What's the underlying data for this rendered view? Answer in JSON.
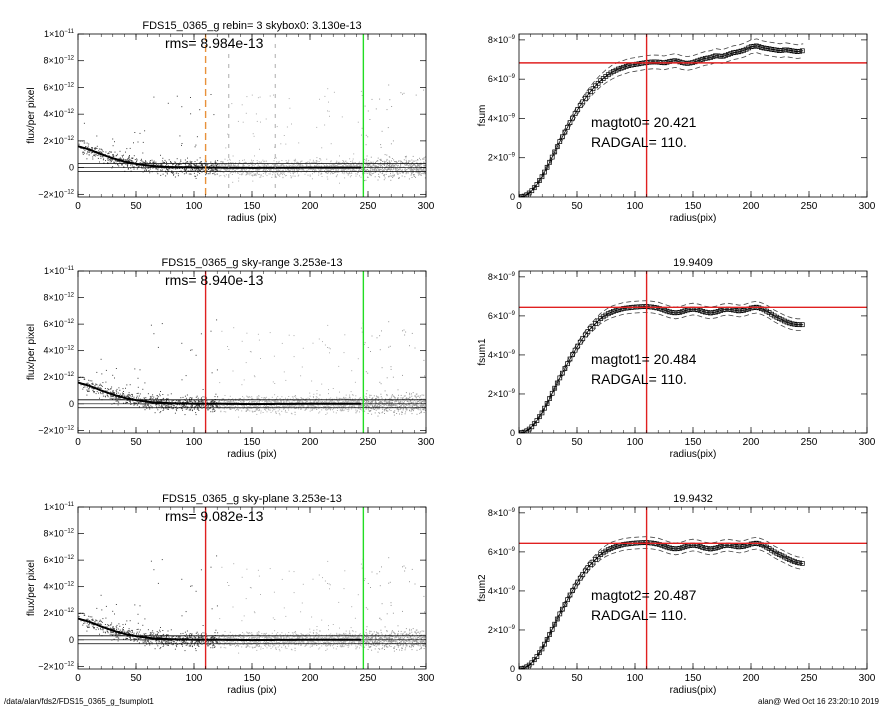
{
  "footer": {
    "path": "/data/alan/fds2/FDS15_0365_g_fsumplot1",
    "stamp": "alan@  Wed Oct 16 23:20:10 2019"
  },
  "chart_data": [
    {
      "type": "scatter",
      "title": "FDS15_0365_g rebin= 3    skybox0:  3.130e-13",
      "annotation": "rms= 8.984e-13",
      "xlabel": "radius (pix)",
      "ylabel": "flux/per pixel",
      "xlim": [
        0,
        300
      ],
      "ylim": [
        -2.2e-12,
        1e-11
      ],
      "xticks": [
        0,
        50,
        100,
        150,
        200,
        250,
        300
      ],
      "yticks": [
        -2e-12,
        0,
        2e-12,
        4e-12,
        6e-12,
        8e-12,
        1e-11
      ],
      "ytick_labels": [
        {
          "m": "−2",
          "e": "−12"
        },
        {
          "m": "0",
          "e": ""
        },
        {
          "m": "2",
          "e": "−12"
        },
        {
          "m": "4",
          "e": "−12"
        },
        {
          "m": "6",
          "e": "−12"
        },
        {
          "m": "8",
          "e": "−12"
        },
        {
          "m": "1",
          "e": "−11"
        }
      ],
      "profile": {
        "x": [
          0,
          10,
          20,
          30,
          40,
          50,
          60,
          70,
          80,
          100,
          120,
          150,
          200,
          245
        ],
        "y": [
          1.6e-12,
          1.35e-12,
          1e-12,
          7e-13,
          4.5e-13,
          2.8e-13,
          1.5e-13,
          8e-14,
          4e-14,
          1e-14,
          0.0,
          -2e-14,
          0.0,
          0.0
        ]
      },
      "hlines": [
        3e-13,
        -3e-13
      ],
      "vlines": [
        {
          "x": 110,
          "color": "#e8913a",
          "style": "dashed"
        },
        {
          "x": 246,
          "color": "#22dd22",
          "style": "solid"
        },
        {
          "x": 130,
          "color": "#999999",
          "style": "dashed-thin"
        },
        {
          "x": 170,
          "color": "#999999",
          "style": "dashed-thin"
        }
      ]
    },
    {
      "type": "line",
      "title": "",
      "annotation": [
        "magtot0=  20.421",
        "RADGAL=     110."
      ],
      "xlabel": "radius(pix)",
      "ylabel": "fsum",
      "xlim": [
        0,
        300
      ],
      "ylim": [
        0,
        8.3e-09
      ],
      "xticks": [
        0,
        50,
        100,
        150,
        200,
        250,
        300
      ],
      "yticks": [
        0,
        2e-09,
        4e-09,
        6e-09,
        8e-09
      ],
      "ytick_labels": [
        {
          "m": "0",
          "e": ""
        },
        {
          "m": "2",
          "e": "−9"
        },
        {
          "m": "4",
          "e": "−9"
        },
        {
          "m": "6",
          "e": "−9"
        },
        {
          "m": "8",
          "e": "−9"
        }
      ],
      "curve": {
        "x": [
          0,
          5,
          10,
          15,
          20,
          25,
          30,
          35,
          40,
          45,
          50,
          55,
          60,
          65,
          70,
          75,
          80,
          85,
          90,
          95,
          100,
          105,
          110,
          115,
          120,
          125,
          130,
          135,
          140,
          145,
          150,
          155,
          160,
          165,
          170,
          175,
          180,
          185,
          190,
          195,
          200,
          205,
          210,
          215,
          220,
          225,
          230,
          235,
          240,
          245
        ],
        "y": [
          0,
          5e-11,
          2.5e-10,
          6e-10,
          1.05e-09,
          1.6e-09,
          2.2e-09,
          2.8e-09,
          3.35e-09,
          3.9e-09,
          4.4e-09,
          4.85e-09,
          5.25e-09,
          5.6e-09,
          5.9e-09,
          6.15e-09,
          6.35e-09,
          6.5e-09,
          6.6e-09,
          6.7e-09,
          6.75e-09,
          6.8e-09,
          6.85e-09,
          6.88e-09,
          6.87e-09,
          6.83e-09,
          6.9e-09,
          6.95e-09,
          6.85e-09,
          6.8e-09,
          6.85e-09,
          6.95e-09,
          7.05e-09,
          7.1e-09,
          7.2e-09,
          7.15e-09,
          7.25e-09,
          7.35e-09,
          7.4e-09,
          7.5e-09,
          7.65e-09,
          7.7e-09,
          7.6e-09,
          7.55e-09,
          7.5e-09,
          7.45e-09,
          7.5e-09,
          7.45e-09,
          7.4e-09,
          7.45e-09
        ]
      },
      "envelope": 3.5e-10,
      "hline": {
        "y": 6.83e-09,
        "color": "#e02020"
      },
      "vline": {
        "x": 110,
        "color": "#e02020"
      }
    },
    {
      "type": "scatter",
      "title": "FDS15_0365_g sky-range  3.253e-13",
      "annotation": "rms= 8.940e-13",
      "xlabel": "radius (pix)",
      "ylabel": "flux/per pixel",
      "xlim": [
        0,
        300
      ],
      "ylim": [
        -2.2e-12,
        1e-11
      ],
      "xticks": [
        0,
        50,
        100,
        150,
        200,
        250,
        300
      ],
      "yticks": [
        -2e-12,
        0,
        2e-12,
        4e-12,
        6e-12,
        8e-12,
        1e-11
      ],
      "ytick_labels": [
        {
          "m": "−2",
          "e": "−12"
        },
        {
          "m": "0",
          "e": ""
        },
        {
          "m": "2",
          "e": "−12"
        },
        {
          "m": "4",
          "e": "−12"
        },
        {
          "m": "6",
          "e": "−12"
        },
        {
          "m": "8",
          "e": "−12"
        },
        {
          "m": "1",
          "e": "−11"
        }
      ],
      "profile": {
        "x": [
          0,
          10,
          20,
          30,
          40,
          50,
          60,
          70,
          80,
          100,
          120,
          150,
          200,
          245
        ],
        "y": [
          1.6e-12,
          1.35e-12,
          1e-12,
          7e-13,
          4.5e-13,
          2.8e-13,
          1.5e-13,
          8e-14,
          4e-14,
          1e-14,
          0.0,
          -2e-14,
          0.0,
          0.0
        ]
      },
      "hlines": [
        3e-13,
        -3e-13
      ],
      "vlines": [
        {
          "x": 110,
          "color": "#e02020",
          "style": "solid"
        },
        {
          "x": 246,
          "color": "#22dd22",
          "style": "solid"
        }
      ]
    },
    {
      "type": "line",
      "title": "19.9409",
      "annotation": [
        "magtot1=  20.484",
        "RADGAL=     110."
      ],
      "xlabel": "radius(pix)",
      "ylabel": "fsum1",
      "xlim": [
        0,
        300
      ],
      "ylim": [
        0,
        8.3e-09
      ],
      "xticks": [
        0,
        50,
        100,
        150,
        200,
        250,
        300
      ],
      "yticks": [
        0,
        2e-09,
        4e-09,
        6e-09,
        8e-09
      ],
      "ytick_labels": [
        {
          "m": "0",
          "e": ""
        },
        {
          "m": "2",
          "e": "−9"
        },
        {
          "m": "4",
          "e": "−9"
        },
        {
          "m": "6",
          "e": "−9"
        },
        {
          "m": "8",
          "e": "−9"
        }
      ],
      "curve": {
        "x": [
          0,
          5,
          10,
          15,
          20,
          25,
          30,
          35,
          40,
          45,
          50,
          55,
          60,
          65,
          70,
          75,
          80,
          85,
          90,
          95,
          100,
          105,
          110,
          115,
          120,
          125,
          130,
          135,
          140,
          145,
          150,
          155,
          160,
          165,
          170,
          175,
          180,
          185,
          190,
          195,
          200,
          205,
          210,
          215,
          220,
          225,
          230,
          235,
          240,
          245
        ],
        "y": [
          0,
          5e-11,
          2.5e-10,
          6e-10,
          1.05e-09,
          1.6e-09,
          2.2e-09,
          2.8e-09,
          3.35e-09,
          3.9e-09,
          4.4e-09,
          4.85e-09,
          5.25e-09,
          5.55e-09,
          5.85e-09,
          6.05e-09,
          6.2e-09,
          6.3e-09,
          6.38e-09,
          6.42e-09,
          6.45e-09,
          6.47e-09,
          6.48e-09,
          6.45e-09,
          6.4e-09,
          6.3e-09,
          6.2e-09,
          6.15e-09,
          6.2e-09,
          6.3e-09,
          6.35e-09,
          6.3e-09,
          6.2e-09,
          6.15e-09,
          6.2e-09,
          6.3e-09,
          6.35e-09,
          6.3e-09,
          6.25e-09,
          6.3e-09,
          6.4e-09,
          6.45e-09,
          6.35e-09,
          6.2e-09,
          6e-09,
          5.85e-09,
          5.7e-09,
          5.6e-09,
          5.55e-09,
          5.55e-09
        ]
      },
      "envelope": 3e-10,
      "hline": {
        "y": 6.44e-09,
        "color": "#e02020"
      },
      "vline": {
        "x": 110,
        "color": "#e02020"
      }
    },
    {
      "type": "scatter",
      "title": "FDS15_0365_g sky-plane  3.253e-13",
      "annotation": "rms= 9.082e-13",
      "xlabel": "radius (pix)",
      "ylabel": "flux/per pixel",
      "xlim": [
        0,
        300
      ],
      "ylim": [
        -2.2e-12,
        1e-11
      ],
      "xticks": [
        0,
        50,
        100,
        150,
        200,
        250,
        300
      ],
      "yticks": [
        -2e-12,
        0,
        2e-12,
        4e-12,
        6e-12,
        8e-12,
        1e-11
      ],
      "ytick_labels": [
        {
          "m": "−2",
          "e": "−12"
        },
        {
          "m": "0",
          "e": ""
        },
        {
          "m": "2",
          "e": "−12"
        },
        {
          "m": "4",
          "e": "−12"
        },
        {
          "m": "6",
          "e": "−12"
        },
        {
          "m": "8",
          "e": "−12"
        },
        {
          "m": "1",
          "e": "−11"
        }
      ],
      "profile": {
        "x": [
          0,
          10,
          20,
          30,
          40,
          50,
          60,
          70,
          80,
          100,
          120,
          150,
          200,
          245
        ],
        "y": [
          1.6e-12,
          1.35e-12,
          1e-12,
          7e-13,
          4.5e-13,
          2.8e-13,
          1.5e-13,
          8e-14,
          4e-14,
          1e-14,
          0.0,
          -2e-14,
          0.0,
          0.0
        ]
      },
      "hlines": [
        3e-13,
        -3e-13
      ],
      "vlines": [
        {
          "x": 110,
          "color": "#e02020",
          "style": "solid"
        },
        {
          "x": 246,
          "color": "#22dd22",
          "style": "solid"
        }
      ]
    },
    {
      "type": "line",
      "title": "19.9432",
      "annotation": [
        "magtot2=  20.487",
        "RADGAL=     110."
      ],
      "xlabel": "radius(pix)",
      "ylabel": "fsum2",
      "xlim": [
        0,
        300
      ],
      "ylim": [
        0,
        8.3e-09
      ],
      "xticks": [
        0,
        50,
        100,
        150,
        200,
        250,
        300
      ],
      "yticks": [
        0,
        2e-09,
        4e-09,
        6e-09,
        8e-09
      ],
      "ytick_labels": [
        {
          "m": "0",
          "e": ""
        },
        {
          "m": "2",
          "e": "−9"
        },
        {
          "m": "4",
          "e": "−9"
        },
        {
          "m": "6",
          "e": "−9"
        },
        {
          "m": "8",
          "e": "−9"
        }
      ],
      "curve": {
        "x": [
          0,
          5,
          10,
          15,
          20,
          25,
          30,
          35,
          40,
          45,
          50,
          55,
          60,
          65,
          70,
          75,
          80,
          85,
          90,
          95,
          100,
          105,
          110,
          115,
          120,
          125,
          130,
          135,
          140,
          145,
          150,
          155,
          160,
          165,
          170,
          175,
          180,
          185,
          190,
          195,
          200,
          205,
          210,
          215,
          220,
          225,
          230,
          235,
          240,
          245
        ],
        "y": [
          0,
          5e-11,
          2.5e-10,
          6e-10,
          1.05e-09,
          1.6e-09,
          2.2e-09,
          2.8e-09,
          3.35e-09,
          3.9e-09,
          4.4e-09,
          4.85e-09,
          5.25e-09,
          5.55e-09,
          5.85e-09,
          6.05e-09,
          6.2e-09,
          6.3e-09,
          6.38e-09,
          6.42e-09,
          6.45e-09,
          6.47e-09,
          6.48e-09,
          6.45e-09,
          6.4e-09,
          6.3e-09,
          6.2e-09,
          6.15e-09,
          6.2e-09,
          6.3e-09,
          6.35e-09,
          6.3e-09,
          6.2e-09,
          6.15e-09,
          6.2e-09,
          6.3e-09,
          6.35e-09,
          6.3e-09,
          6.25e-09,
          6.3e-09,
          6.4e-09,
          6.45e-09,
          6.35e-09,
          6.2e-09,
          6e-09,
          5.85e-09,
          5.7e-09,
          5.55e-09,
          5.45e-09,
          5.4e-09
        ]
      },
      "envelope": 3e-10,
      "hline": {
        "y": 6.44e-09,
        "color": "#e02020"
      },
      "vline": {
        "x": 110,
        "color": "#e02020"
      }
    }
  ]
}
